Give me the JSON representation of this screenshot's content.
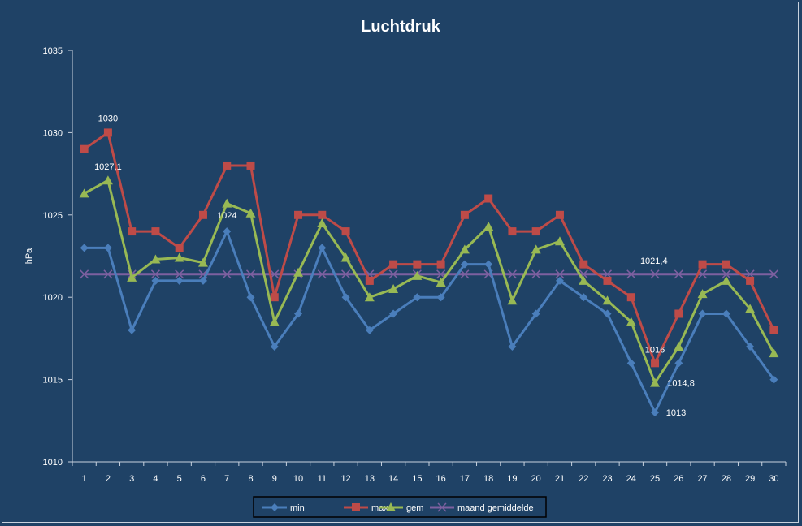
{
  "chart_data": {
    "type": "line",
    "title": "Luchtdruk",
    "xlabel": "",
    "ylabel": "hPa",
    "ylim": [
      1010,
      1035
    ],
    "yticks": [
      1010,
      1015,
      1020,
      1025,
      1030,
      1035
    ],
    "categories": [
      "1",
      "2",
      "3",
      "4",
      "5",
      "6",
      "7",
      "8",
      "9",
      "10",
      "11",
      "12",
      "13",
      "14",
      "15",
      "16",
      "17",
      "18",
      "19",
      "20",
      "21",
      "22",
      "23",
      "24",
      "25",
      "26",
      "27",
      "28",
      "29",
      "30"
    ],
    "grid": false,
    "legend_position": "bottom",
    "series": [
      {
        "name": "min",
        "color": "#4a7ebb",
        "marker": "diamond",
        "values": [
          1023,
          1023,
          1018,
          1021,
          1021,
          1021,
          1024,
          1020,
          1017,
          1019,
          1023,
          1020,
          1018,
          1019,
          1020,
          1020,
          1022,
          1022,
          1017,
          1019,
          1021,
          1020,
          1019,
          1016,
          1013,
          1016,
          1019,
          1019,
          1017,
          1015
        ]
      },
      {
        "name": "max",
        "color": "#be4b48",
        "marker": "square",
        "values": [
          1029,
          1030,
          1024,
          1024,
          1023,
          1025,
          1028,
          1028,
          1020,
          1025,
          1025,
          1024,
          1021,
          1022,
          1022,
          1022,
          1025,
          1026,
          1024,
          1024,
          1025,
          1022,
          1021,
          1020,
          1016,
          1019,
          1022,
          1022,
          1021,
          1018
        ]
      },
      {
        "name": "gem",
        "color": "#98b954",
        "marker": "triangle",
        "values": [
          1026.3,
          1027.1,
          1021.2,
          1022.3,
          1022.4,
          1022.1,
          1025.7,
          1025.1,
          1018.5,
          1021.5,
          1024.5,
          1022.4,
          1020,
          1020.5,
          1021.3,
          1020.9,
          1022.9,
          1024.3,
          1019.8,
          1022.9,
          1023.4,
          1021,
          1019.8,
          1018.5,
          1014.8,
          1017,
          1020.2,
          1021,
          1019.3,
          1016.6
        ]
      },
      {
        "name": "maand gemiddelde",
        "color": "#7d60a0",
        "marker": "x",
        "values": [
          1021.4,
          1021.4,
          1021.4,
          1021.4,
          1021.4,
          1021.4,
          1021.4,
          1021.4,
          1021.4,
          1021.4,
          1021.4,
          1021.4,
          1021.4,
          1021.4,
          1021.4,
          1021.4,
          1021.4,
          1021.4,
          1021.4,
          1021.4,
          1021.4,
          1021.4,
          1021.4,
          1021.4,
          1021.4,
          1021.4,
          1021.4,
          1021.4,
          1021.4,
          1021.4
        ]
      }
    ],
    "data_labels": [
      {
        "series": "max",
        "index": 1,
        "text": "1030"
      },
      {
        "series": "gem",
        "index": 1,
        "text": "1027,1"
      },
      {
        "series": "min",
        "index": 6,
        "text": "1024"
      },
      {
        "series": "maand gemiddelde",
        "index": 23,
        "text": "1021,4"
      },
      {
        "series": "max",
        "index": 24,
        "text": "1016"
      },
      {
        "series": "gem",
        "index": 24,
        "text": "1014,8"
      },
      {
        "series": "min",
        "index": 24,
        "text": "1013"
      }
    ]
  }
}
